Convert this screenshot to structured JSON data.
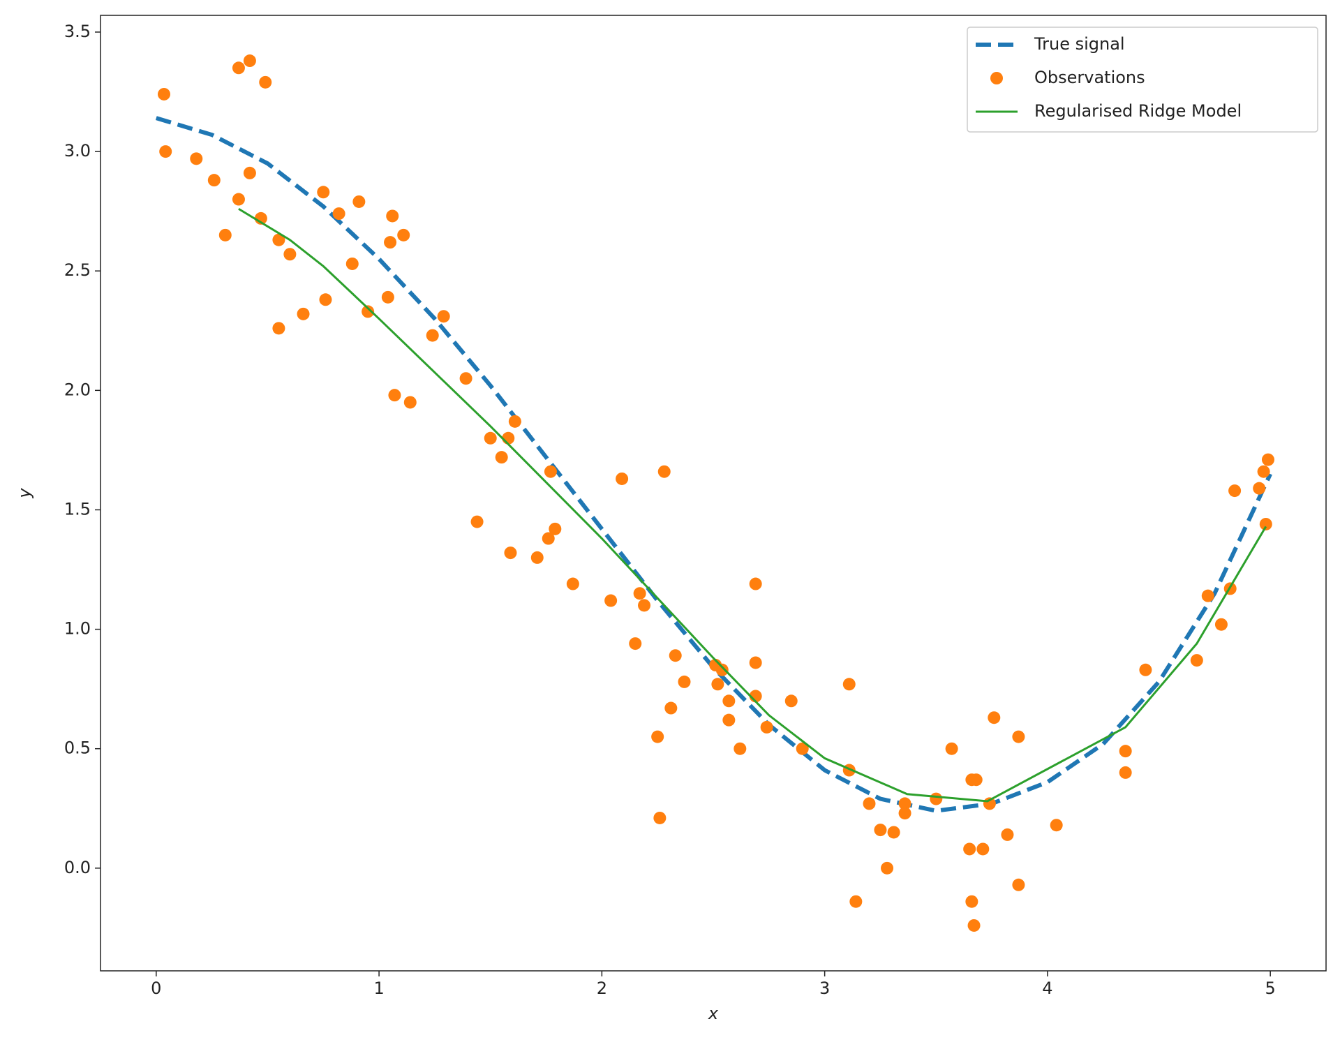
{
  "chart_data": {
    "type": "line",
    "xlabel": "x",
    "ylabel": "y",
    "xlim": [
      -0.25,
      5.25
    ],
    "ylim": [
      -0.43,
      3.57
    ],
    "xticks": [
      0,
      1,
      2,
      3,
      4,
      5
    ],
    "yticks": [
      {
        "value": 0.0,
        "label": "0.0"
      },
      0.5,
      {
        "value": 1.0,
        "label": "1.0"
      },
      1.5,
      {
        "value": 2.0,
        "label": "2.0"
      },
      2.5,
      {
        "value": 3.0,
        "label": "3.0"
      },
      3.5
    ],
    "legend": "upper right",
    "series": [
      {
        "name": "True signal",
        "color": "#1f77b4",
        "style": "dashed",
        "x": [
          0,
          0.25,
          0.5,
          0.75,
          1.0,
          1.25,
          1.5,
          1.75,
          2.0,
          2.25,
          2.5,
          2.75,
          3.0,
          3.25,
          3.5,
          3.75,
          4.0,
          4.25,
          4.5,
          4.75,
          5.0
        ],
        "values": [
          3.14,
          3.07,
          2.95,
          2.77,
          2.55,
          2.3,
          2.02,
          1.72,
          1.42,
          1.12,
          0.84,
          0.6,
          0.41,
          0.29,
          0.24,
          0.27,
          0.36,
          0.52,
          0.78,
          1.15,
          1.65
        ]
      },
      {
        "name": "Observations",
        "color": "#ff7f0e",
        "style": "markers",
        "x": [
          0.035,
          0.042,
          0.18,
          0.26,
          0.31,
          0.37,
          0.42,
          0.49,
          0.42,
          0.37,
          0.47,
          0.55,
          0.6,
          0.55,
          0.66,
          0.76,
          0.75,
          0.82,
          0.91,
          0.88,
          0.95,
          1.04,
          1.06,
          1.05,
          1.11,
          1.07,
          1.14,
          1.24,
          1.29,
          1.39,
          1.5,
          1.55,
          1.58,
          1.61,
          1.44,
          1.59,
          1.71,
          1.77,
          1.76,
          1.79,
          1.87,
          2.04,
          2.09,
          2.15,
          2.17,
          2.19,
          2.28,
          2.25,
          2.26,
          2.31,
          2.33,
          2.37,
          2.51,
          2.54,
          2.52,
          2.57,
          2.57,
          2.62,
          2.69,
          2.69,
          2.69,
          2.74,
          2.85,
          2.9,
          3.11,
          3.11,
          3.14,
          3.2,
          3.25,
          3.31,
          3.28,
          3.36,
          3.36,
          3.5,
          3.57,
          3.66,
          3.68,
          3.65,
          3.71,
          3.66,
          3.67,
          3.74,
          3.76,
          3.82,
          3.87,
          3.87,
          4.04,
          4.35,
          4.35,
          4.44,
          4.67,
          4.72,
          4.82,
          4.78,
          4.84,
          4.95,
          4.97,
          4.99,
          4.98
        ],
        "values": [
          3.24,
          3.0,
          2.97,
          2.88,
          2.65,
          3.35,
          3.38,
          3.29,
          2.91,
          2.8,
          2.72,
          2.63,
          2.57,
          2.26,
          2.32,
          2.38,
          2.83,
          2.74,
          2.79,
          2.53,
          2.33,
          2.39,
          2.73,
          2.62,
          2.65,
          1.98,
          1.95,
          2.23,
          2.31,
          2.05,
          1.8,
          1.72,
          1.8,
          1.87,
          1.45,
          1.32,
          1.3,
          1.66,
          1.38,
          1.42,
          1.19,
          1.12,
          1.63,
          0.94,
          1.15,
          1.1,
          1.66,
          0.55,
          0.21,
          0.67,
          0.89,
          0.78,
          0.85,
          0.83,
          0.77,
          0.7,
          0.62,
          0.5,
          1.19,
          0.86,
          0.72,
          0.59,
          0.7,
          0.5,
          0.77,
          0.41,
          -0.14,
          0.27,
          0.16,
          0.15,
          0.0,
          0.27,
          0.23,
          0.29,
          0.5,
          0.37,
          0.37,
          0.08,
          0.08,
          -0.14,
          -0.24,
          0.27,
          0.63,
          0.14,
          0.55,
          -0.07,
          0.18,
          0.49,
          0.4,
          0.83,
          0.87,
          1.14,
          1.17,
          1.02,
          1.58,
          1.59,
          1.66,
          1.71,
          1.44
        ]
      },
      {
        "name": "Regularised Ridge Model",
        "color": "#2ca02c",
        "style": "solid",
        "x": [
          0.37,
          0.6,
          0.75,
          1.0,
          1.5,
          2.0,
          2.5,
          2.75,
          3.0,
          3.37,
          3.73,
          4.35,
          4.67,
          4.98
        ],
        "values": [
          2.76,
          2.63,
          2.52,
          2.3,
          1.85,
          1.38,
          0.88,
          0.64,
          0.46,
          0.31,
          0.28,
          0.59,
          0.94,
          1.43
        ]
      }
    ]
  }
}
